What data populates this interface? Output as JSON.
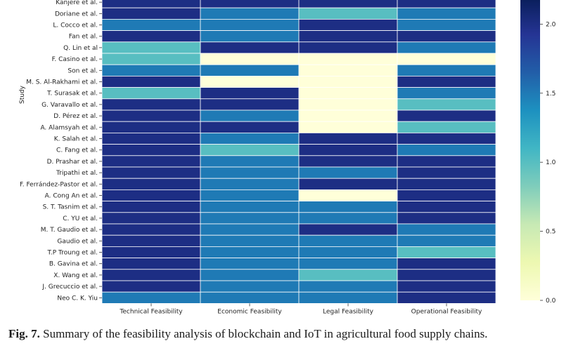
{
  "chart_data": {
    "type": "heatmap",
    "ylabel": "Study",
    "columns": [
      "Technical Feasibility",
      "Economic Feasibility",
      "Legal Feasibility",
      "Operational Feasibility"
    ],
    "rows": [
      {
        "study": "Kanjere et al.",
        "values": [
          2.0,
          2.0,
          2.0,
          2.0
        ]
      },
      {
        "study": "Doriane et al.",
        "values": [
          2.0,
          1.5,
          1.0,
          1.5
        ]
      },
      {
        "study": "L. Cocco et al.",
        "values": [
          1.5,
          1.5,
          2.0,
          1.5
        ]
      },
      {
        "study": "Fan et al.",
        "values": [
          2.0,
          1.5,
          2.0,
          2.0
        ]
      },
      {
        "study": "Q. Lin et al",
        "values": [
          1.0,
          2.0,
          2.0,
          1.5
        ]
      },
      {
        "study": "F. Casino et al.",
        "values": [
          1.0,
          0.0,
          0.0,
          0.0
        ]
      },
      {
        "study": "Son et al.",
        "values": [
          1.5,
          1.5,
          0.0,
          1.5
        ]
      },
      {
        "study": "M. S. Al-Rakhami et al.",
        "values": [
          2.0,
          0.0,
          0.0,
          2.0
        ]
      },
      {
        "study": "T. Surasak et al.",
        "values": [
          1.0,
          2.0,
          0.0,
          1.5
        ]
      },
      {
        "study": "G. Varavallo et al.",
        "values": [
          2.0,
          2.0,
          0.0,
          1.0
        ]
      },
      {
        "study": "D. Pérez et al.",
        "values": [
          2.0,
          1.5,
          0.0,
          2.0
        ]
      },
      {
        "study": "A. Alamsyah et al.",
        "values": [
          2.0,
          2.0,
          0.0,
          1.0
        ]
      },
      {
        "study": "K. Salah et al.",
        "values": [
          2.0,
          1.5,
          2.0,
          2.0
        ]
      },
      {
        "study": "C. Fang et al.",
        "values": [
          2.0,
          1.0,
          2.0,
          1.5
        ]
      },
      {
        "study": "D. Prashar et al.",
        "values": [
          2.0,
          1.5,
          2.0,
          2.0
        ]
      },
      {
        "study": "Tripathi et al.",
        "values": [
          2.0,
          1.5,
          1.5,
          2.0
        ]
      },
      {
        "study": "F. Ferrández-Pastor et al.",
        "values": [
          2.0,
          1.5,
          2.0,
          2.0
        ]
      },
      {
        "study": "A. Cong An et al.",
        "values": [
          2.0,
          1.5,
          0.0,
          2.0
        ]
      },
      {
        "study": "S. T. Tasnim et al.",
        "values": [
          2.0,
          1.5,
          1.5,
          2.0
        ]
      },
      {
        "study": "C. YU et al.",
        "values": [
          2.0,
          1.5,
          1.5,
          2.0
        ]
      },
      {
        "study": "M. T. Gaudio et al.",
        "values": [
          2.0,
          1.5,
          2.0,
          1.5
        ]
      },
      {
        "study": "Gaudio et al.",
        "values": [
          2.0,
          1.5,
          1.5,
          1.5
        ]
      },
      {
        "study": "T.P Troung et al.",
        "values": [
          2.0,
          1.5,
          1.5,
          1.0
        ]
      },
      {
        "study": "B. Gavina et al.",
        "values": [
          2.0,
          1.5,
          1.5,
          2.0
        ]
      },
      {
        "study": "X. Wang et al.",
        "values": [
          2.0,
          1.5,
          1.0,
          2.0
        ]
      },
      {
        "study": "J. Grecuccio et al.",
        "values": [
          2.0,
          1.5,
          1.5,
          2.0
        ]
      },
      {
        "study": "Neo C. K. Yiu",
        "values": [
          1.5,
          1.5,
          1.5,
          2.0
        ]
      }
    ],
    "colorbar": {
      "range": [
        0,
        2.2
      ],
      "ticks": [
        0.0,
        0.5,
        1.0,
        1.5,
        2.0
      ],
      "tick_labels": [
        "0.0",
        "0.5",
        "1.0",
        "1.5",
        "2.0"
      ],
      "colormap": "YlGnBu"
    }
  },
  "caption": {
    "label": "Fig. 7.",
    "text": "Summary of the feasibility analysis of blockchain and IoT in agricultural food supply chains."
  }
}
